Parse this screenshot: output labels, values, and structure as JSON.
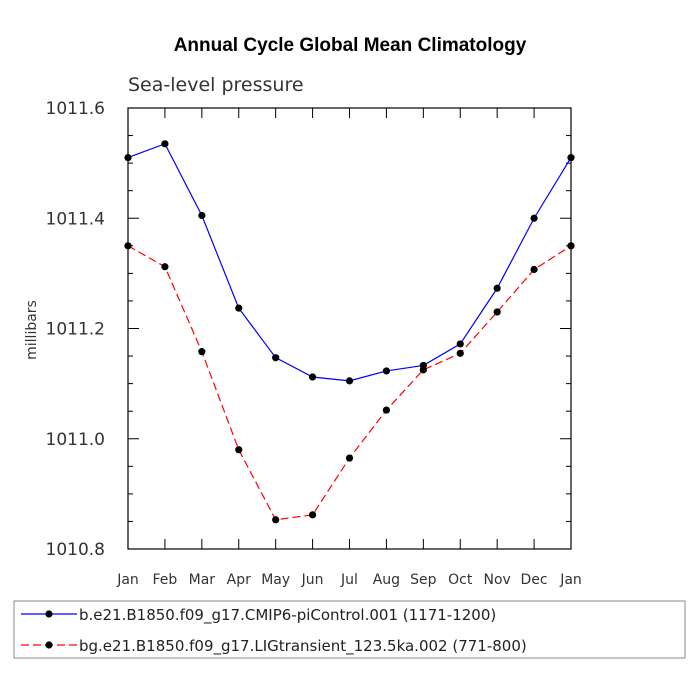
{
  "chart_data": {
    "type": "line",
    "title": "Annual Cycle Global Mean Climatology",
    "subtitle": "Sea-level pressure",
    "xlabel": "",
    "ylabel": "millibars",
    "categories": [
      "Jan",
      "Feb",
      "Mar",
      "Apr",
      "May",
      "Jun",
      "Jul",
      "Aug",
      "Sep",
      "Oct",
      "Nov",
      "Dec",
      "Jan"
    ],
    "ylim": [
      1010.8,
      1011.6
    ],
    "yticks": [
      "1010.8",
      "1011.0",
      "1011.2",
      "1011.4",
      "1011.6"
    ],
    "grid": false,
    "legend_position": "bottom",
    "series": [
      {
        "name": "b.e21.B1850.f09_g17.CMIP6-piControl.001 (1171-1200)",
        "color": "#0000ff",
        "dash": "solid",
        "values": [
          1011.51,
          1011.535,
          1011.405,
          1011.237,
          1011.147,
          1011.112,
          1011.105,
          1011.123,
          1011.133,
          1011.172,
          1011.273,
          1011.4,
          1011.51
        ]
      },
      {
        "name": "bg.e21.B1850.f09_g17.LIGtransient_123.5ka.002 (771-800)",
        "color": "#ff0000",
        "dash": "dashed",
        "values": [
          1011.35,
          1011.312,
          1011.158,
          1010.98,
          1010.853,
          1010.862,
          1010.965,
          1011.052,
          1011.125,
          1011.155,
          1011.23,
          1011.307,
          1011.35
        ]
      }
    ]
  }
}
